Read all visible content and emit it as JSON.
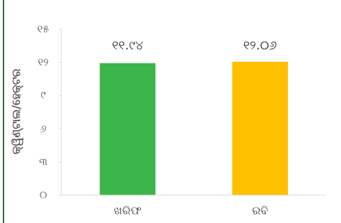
{
  "chart_data": {
    "type": "bar",
    "y_label": "କ୍ୱିଣ୍ଟାଲ/ହେକ୍ଟର",
    "categories": [
      "ଖରିଫ",
      "ରବି"
    ],
    "values": [
      11.94,
      12.06
    ],
    "value_labels": [
      "୧୧.୯୪",
      "୧୨.୦୬"
    ],
    "colors": [
      "#3cb54a",
      "#ffc000"
    ],
    "ylim": [
      0,
      15
    ],
    "yticks": [
      {
        "value": 0,
        "label": "୦"
      },
      {
        "value": 3,
        "label": "୩"
      },
      {
        "value": 6,
        "label": "୬"
      },
      {
        "value": 9,
        "label": "୯"
      },
      {
        "value": 12,
        "label": "୧୨"
      },
      {
        "value": 15,
        "label": "୧୫"
      }
    ]
  }
}
